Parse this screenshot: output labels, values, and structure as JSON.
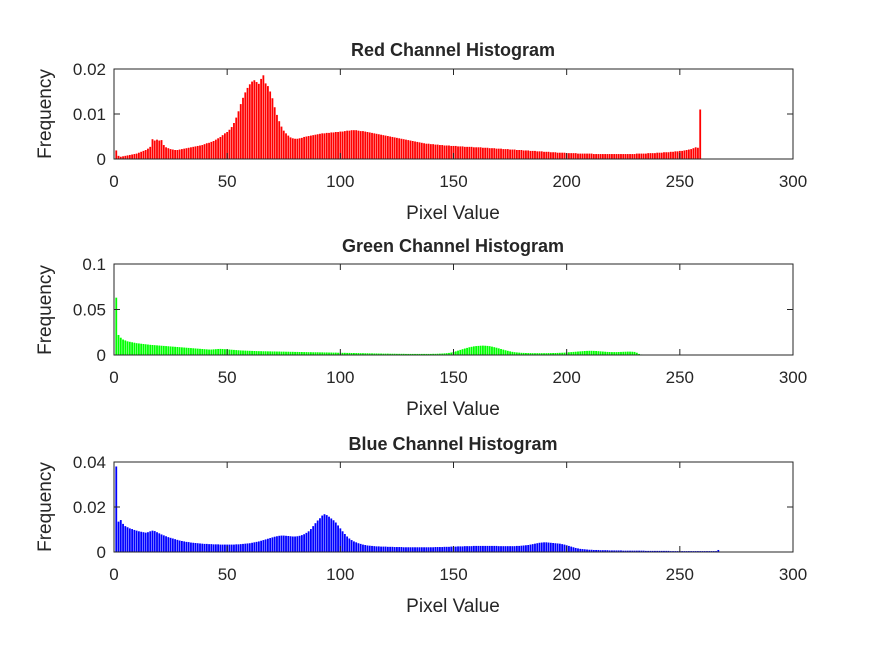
{
  "chart_data": [
    {
      "type": "bar",
      "title": "Red Channel Histogram",
      "xlabel": "Pixel Value",
      "ylabel": "Frequency",
      "xlim": [
        0,
        300
      ],
      "ylim": [
        0,
        0.02
      ],
      "xticks": [
        "0",
        "50",
        "100",
        "150",
        "200",
        "250",
        "300"
      ],
      "yticks": [
        "0",
        "0.01",
        "0.02"
      ],
      "color": "#ff0000",
      "grid": false,
      "x_start": 1,
      "values": [
        0.0019,
        0.0007,
        0.0005,
        0.0006,
        0.0007,
        0.0008,
        0.0009,
        0.001,
        0.0011,
        0.0012,
        0.0014,
        0.0016,
        0.0018,
        0.002,
        0.0023,
        0.0027,
        0.0044,
        0.0041,
        0.0043,
        0.0041,
        0.0042,
        0.0031,
        0.0026,
        0.0024,
        0.0022,
        0.0021,
        0.002,
        0.002,
        0.0021,
        0.0022,
        0.0023,
        0.0024,
        0.0025,
        0.0026,
        0.0027,
        0.0028,
        0.0029,
        0.003,
        0.0031,
        0.0033,
        0.0035,
        0.0036,
        0.0038,
        0.004,
        0.0043,
        0.0046,
        0.0049,
        0.0053,
        0.0057,
        0.006,
        0.0065,
        0.0071,
        0.008,
        0.0092,
        0.0106,
        0.0122,
        0.0136,
        0.0148,
        0.0158,
        0.0166,
        0.0172,
        0.0175,
        0.0171,
        0.0167,
        0.0178,
        0.0186,
        0.0168,
        0.0162,
        0.015,
        0.0135,
        0.0115,
        0.0098,
        0.0084,
        0.0072,
        0.0063,
        0.0057,
        0.0052,
        0.0048,
        0.0046,
        0.0045,
        0.0045,
        0.0046,
        0.0047,
        0.0049,
        0.005,
        0.0051,
        0.0052,
        0.0053,
        0.0054,
        0.0055,
        0.0056,
        0.0057,
        0.0057,
        0.0058,
        0.0058,
        0.0059,
        0.0059,
        0.006,
        0.006,
        0.0061,
        0.0061,
        0.0062,
        0.0063,
        0.0063,
        0.0064,
        0.0064,
        0.0064,
        0.0063,
        0.0062,
        0.0062,
        0.0061,
        0.006,
        0.0059,
        0.0058,
        0.0057,
        0.0056,
        0.0055,
        0.0054,
        0.0053,
        0.0052,
        0.0051,
        0.005,
        0.0049,
        0.0048,
        0.0047,
        0.0046,
        0.0045,
        0.0044,
        0.0043,
        0.0042,
        0.0041,
        0.004,
        0.0039,
        0.0038,
        0.0037,
        0.0036,
        0.0035,
        0.0034,
        0.0034,
        0.0033,
        0.0033,
        0.0032,
        0.0032,
        0.0031,
        0.0031,
        0.003,
        0.003,
        0.003,
        0.0029,
        0.0029,
        0.0029,
        0.0028,
        0.0028,
        0.0028,
        0.0027,
        0.0027,
        0.0027,
        0.0027,
        0.0026,
        0.0026,
        0.0026,
        0.0026,
        0.0025,
        0.0025,
        0.0025,
        0.0024,
        0.0024,
        0.0024,
        0.0023,
        0.0023,
        0.0023,
        0.0022,
        0.0022,
        0.0022,
        0.0021,
        0.0021,
        0.0021,
        0.002,
        0.002,
        0.002,
        0.0019,
        0.0019,
        0.0019,
        0.0018,
        0.0018,
        0.0018,
        0.0017,
        0.0017,
        0.0017,
        0.0016,
        0.0016,
        0.0016,
        0.0015,
        0.0015,
        0.0015,
        0.0014,
        0.0014,
        0.0014,
        0.0014,
        0.0013,
        0.0013,
        0.0013,
        0.0013,
        0.0013,
        0.0012,
        0.0012,
        0.0012,
        0.0012,
        0.0012,
        0.0012,
        0.0012,
        0.0011,
        0.0011,
        0.0011,
        0.0011,
        0.0011,
        0.0011,
        0.0011,
        0.0011,
        0.0011,
        0.0011,
        0.0011,
        0.0011,
        0.0011,
        0.0011,
        0.0011,
        0.0011,
        0.0011,
        0.0011,
        0.0011,
        0.0012,
        0.0012,
        0.0012,
        0.0012,
        0.0012,
        0.0013,
        0.0013,
        0.0013,
        0.0013,
        0.0014,
        0.0014,
        0.0014,
        0.0015,
        0.0015,
        0.0015,
        0.0016,
        0.0016,
        0.0017,
        0.0017,
        0.0018,
        0.0018,
        0.0019,
        0.002,
        0.0021,
        0.0022,
        0.0024,
        0.0026,
        0.0025,
        0.011
      ]
    },
    {
      "type": "bar",
      "title": "Green Channel Histogram",
      "xlabel": "Pixel Value",
      "ylabel": "Frequency",
      "xlim": [
        0,
        300
      ],
      "ylim": [
        0,
        0.1
      ],
      "xticks": [
        "0",
        "50",
        "100",
        "150",
        "200",
        "250",
        "300"
      ],
      "yticks": [
        "0",
        "0.05",
        "0.1"
      ],
      "color": "#00ff00",
      "grid": false,
      "x_start": 1,
      "values": [
        0.063,
        0.022,
        0.019,
        0.017,
        0.016,
        0.015,
        0.0145,
        0.014,
        0.0135,
        0.013,
        0.0127,
        0.0124,
        0.0121,
        0.0118,
        0.0115,
        0.0112,
        0.011,
        0.0108,
        0.0106,
        0.0104,
        0.0102,
        0.01,
        0.0098,
        0.0096,
        0.0094,
        0.0092,
        0.009,
        0.0088,
        0.0086,
        0.0084,
        0.0082,
        0.008,
        0.0078,
        0.0076,
        0.0074,
        0.0072,
        0.007,
        0.0068,
        0.0066,
        0.0064,
        0.0062,
        0.006,
        0.006,
        0.0062,
        0.0064,
        0.0066,
        0.0067,
        0.0066,
        0.0064,
        0.0062,
        0.006,
        0.0058,
        0.0056,
        0.0054,
        0.0052,
        0.005,
        0.0049,
        0.0048,
        0.0047,
        0.0046,
        0.0045,
        0.0044,
        0.0043,
        0.0042,
        0.0042,
        0.0041,
        0.0041,
        0.004,
        0.004,
        0.0039,
        0.0039,
        0.0038,
        0.0038,
        0.0037,
        0.0037,
        0.0036,
        0.0036,
        0.0035,
        0.0035,
        0.0034,
        0.0034,
        0.0033,
        0.0033,
        0.0032,
        0.0032,
        0.0031,
        0.0031,
        0.003,
        0.003,
        0.003,
        0.0029,
        0.0029,
        0.0028,
        0.0028,
        0.0027,
        0.0027,
        0.0026,
        0.0026,
        0.0025,
        0.0025,
        0.0024,
        0.0024,
        0.0023,
        0.0023,
        0.0022,
        0.0022,
        0.0021,
        0.0021,
        0.002,
        0.002,
        0.0019,
        0.0019,
        0.0018,
        0.0018,
        0.0017,
        0.0017,
        0.0016,
        0.0016,
        0.0015,
        0.0015,
        0.0015,
        0.0014,
        0.0014,
        0.0014,
        0.0013,
        0.0013,
        0.0013,
        0.0013,
        0.0012,
        0.0012,
        0.0012,
        0.0012,
        0.0012,
        0.0012,
        0.0012,
        0.0012,
        0.0012,
        0.0012,
        0.0012,
        0.0012,
        0.0013,
        0.0013,
        0.0014,
        0.0015,
        0.0016,
        0.0018,
        0.002,
        0.0023,
        0.0027,
        0.0033,
        0.004,
        0.0048,
        0.0056,
        0.0064,
        0.0071,
        0.0078,
        0.0085,
        0.009,
        0.0095,
        0.0098,
        0.01,
        0.0102,
        0.0103,
        0.0102,
        0.01,
        0.0097,
        0.0092,
        0.0086,
        0.008,
        0.0073,
        0.0066,
        0.0059,
        0.0052,
        0.0046,
        0.004,
        0.0035,
        0.0031,
        0.0028,
        0.0026,
        0.0024,
        0.0023,
        0.0022,
        0.0021,
        0.0021,
        0.002,
        0.002,
        0.002,
        0.002,
        0.002,
        0.002,
        0.002,
        0.0021,
        0.0021,
        0.0022,
        0.0022,
        0.0023,
        0.0024,
        0.0025,
        0.0026,
        0.0028,
        0.003,
        0.0032,
        0.0034,
        0.0036,
        0.0038,
        0.004,
        0.0042,
        0.0044,
        0.0045,
        0.0046,
        0.0046,
        0.0045,
        0.0044,
        0.0042,
        0.004,
        0.0038,
        0.0036,
        0.0034,
        0.0033,
        0.0032,
        0.0032,
        0.0032,
        0.0033,
        0.0034,
        0.0035,
        0.0036,
        0.0037,
        0.0037,
        0.0036,
        0.0034,
        0.0025,
        0.0012,
        0.0006,
        0.0003,
        0.0002,
        0.0001,
        0.0001,
        0.0001,
        0.0001,
        0.0001,
        0.0001,
        0.0001,
        0.0001,
        0.0001,
        0.0001,
        0.0001,
        0.0001,
        0.0001,
        0.0001,
        0.0001,
        0.0001,
        0.0001,
        0.0001,
        0.0001
      ]
    },
    {
      "type": "bar",
      "title": "Blue Channel Histogram",
      "xlabel": "Pixel Value",
      "ylabel": "Frequency",
      "xlim": [
        0,
        300
      ],
      "ylim": [
        0,
        0.04
      ],
      "xticks": [
        "0",
        "50",
        "100",
        "150",
        "200",
        "250",
        "300"
      ],
      "yticks": [
        "0",
        "0.02",
        "0.04"
      ],
      "color": "#0000ff",
      "grid": false,
      "x_start": 1,
      "values": [
        0.038,
        0.0135,
        0.0142,
        0.0125,
        0.0115,
        0.011,
        0.0105,
        0.0102,
        0.0098,
        0.0095,
        0.0092,
        0.009,
        0.0088,
        0.0086,
        0.0088,
        0.0092,
        0.0095,
        0.0093,
        0.0088,
        0.0083,
        0.0078,
        0.0074,
        0.007,
        0.0066,
        0.0063,
        0.006,
        0.0057,
        0.0054,
        0.0051,
        0.0049,
        0.0047,
        0.0045,
        0.0044,
        0.0042,
        0.0041,
        0.004,
        0.0039,
        0.0038,
        0.0037,
        0.0036,
        0.0036,
        0.0035,
        0.0035,
        0.0034,
        0.0034,
        0.0034,
        0.0033,
        0.0033,
        0.0033,
        0.0033,
        0.0033,
        0.0033,
        0.0033,
        0.0034,
        0.0034,
        0.0035,
        0.0036,
        0.0037,
        0.0038,
        0.0039,
        0.0041,
        0.0043,
        0.0045,
        0.0047,
        0.005,
        0.0053,
        0.0056,
        0.0059,
        0.0062,
        0.0065,
        0.0068,
        0.007,
        0.0072,
        0.0073,
        0.0073,
        0.0072,
        0.0071,
        0.007,
        0.0069,
        0.0069,
        0.007,
        0.0072,
        0.0075,
        0.0079,
        0.0085,
        0.0092,
        0.0102,
        0.0115,
        0.0128,
        0.014,
        0.015,
        0.0162,
        0.0168,
        0.0164,
        0.0157,
        0.0149,
        0.0141,
        0.0131,
        0.0118,
        0.0105,
        0.0092,
        0.008,
        0.0069,
        0.006,
        0.0053,
        0.0047,
        0.0043,
        0.0039,
        0.0036,
        0.0033,
        0.0031,
        0.0029,
        0.0028,
        0.0027,
        0.0026,
        0.0025,
        0.0025,
        0.0024,
        0.0024,
        0.0024,
        0.0023,
        0.0023,
        0.0023,
        0.0022,
        0.0022,
        0.0022,
        0.0022,
        0.0021,
        0.0021,
        0.0021,
        0.0021,
        0.0021,
        0.0021,
        0.0021,
        0.0021,
        0.0021,
        0.0021,
        0.0021,
        0.0021,
        0.0021,
        0.0021,
        0.0022,
        0.0022,
        0.0022,
        0.0022,
        0.0023,
        0.0023,
        0.0023,
        0.0024,
        0.0024,
        0.0024,
        0.0025,
        0.0025,
        0.0025,
        0.0026,
        0.0026,
        0.0026,
        0.0026,
        0.0027,
        0.0027,
        0.0027,
        0.0027,
        0.0027,
        0.0027,
        0.0027,
        0.0027,
        0.0027,
        0.0027,
        0.0027,
        0.0026,
        0.0026,
        0.0026,
        0.0026,
        0.0026,
        0.0026,
        0.0026,
        0.0026,
        0.0027,
        0.0027,
        0.0028,
        0.0029,
        0.003,
        0.0031,
        0.0033,
        0.0035,
        0.0037,
        0.0039,
        0.0041,
        0.0042,
        0.0043,
        0.0043,
        0.0042,
        0.0041,
        0.004,
        0.0039,
        0.0038,
        0.0037,
        0.0035,
        0.0033,
        0.003,
        0.0027,
        0.0024,
        0.0021,
        0.0018,
        0.0016,
        0.0014,
        0.0013,
        0.0012,
        0.0011,
        0.001,
        0.001,
        0.0009,
        0.0009,
        0.0009,
        0.0008,
        0.0008,
        0.0008,
        0.0008,
        0.0007,
        0.0007,
        0.0007,
        0.0007,
        0.0007,
        0.0007,
        0.0006,
        0.0006,
        0.0006,
        0.0006,
        0.0006,
        0.0006,
        0.0006,
        0.0006,
        0.0006,
        0.0006,
        0.0005,
        0.0005,
        0.0005,
        0.0005,
        0.0005,
        0.0005,
        0.0005,
        0.0005,
        0.0005,
        0.0005,
        0.0005,
        0.0004,
        0.0004,
        0.0004,
        0.0004,
        0.0004,
        0.0004,
        0.0004,
        0.0004,
        0.0004,
        0.0004,
        0.0004,
        0.0004,
        0.0004,
        0.0004,
        0.0004,
        0.0004,
        0.0004,
        0.0004,
        0.0004,
        0.0004,
        0.0004,
        0.0009
      ]
    }
  ]
}
